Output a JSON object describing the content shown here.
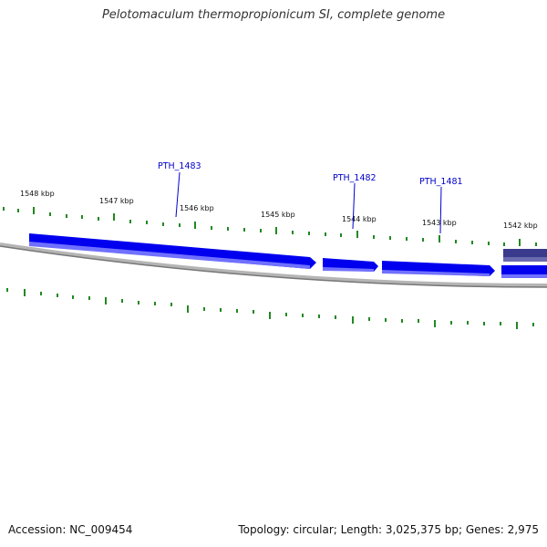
{
  "header": {
    "title": "Pelotomaculum thermopropionicum SI, complete genome"
  },
  "footer": {
    "accession": "Accession: NC_009454",
    "summary": "Topology: circular; Length: 3,025,375 bp; Genes: 2,975"
  },
  "map": {
    "ticks": [
      "1548 kbp",
      "1547 kbp",
      "1546 kbp",
      "1545 kbp",
      "1544 kbp",
      "1543 kbp",
      "1542 kbp"
    ],
    "genes": [
      {
        "label": "PTH_1483",
        "color": "#0000ee"
      },
      {
        "label": "PTH_1482",
        "color": "#0000ee"
      },
      {
        "label": "PTH_1481",
        "color": "#0000ee"
      },
      {
        "label": "",
        "color": "#3a3a8c"
      }
    ],
    "colors": {
      "gene": "#0000ee",
      "gene_highlight": "#6b6bff",
      "gene_dark": "#3a3a8c",
      "backbone": "#777777",
      "tick": "#228822",
      "label_line": "#0000cc"
    }
  }
}
